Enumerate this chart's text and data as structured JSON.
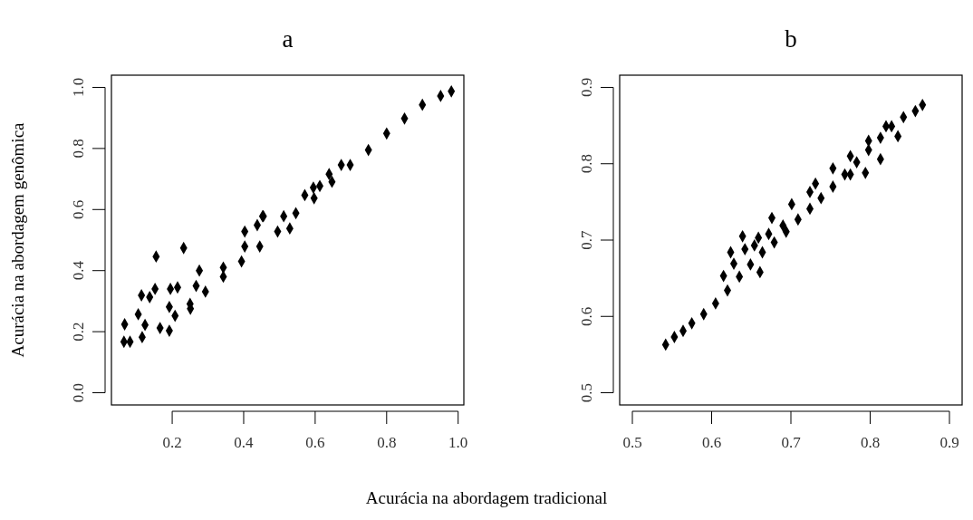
{
  "chart_data": [
    {
      "type": "scatter",
      "title": "a",
      "ylabel": "Acurácia na abordagem genômica",
      "marker": "diamond",
      "grid": false,
      "xlim": [
        0.03,
        1.016
      ],
      "ylim": [
        -0.04,
        1.04
      ],
      "xticks": [
        0.2,
        0.4,
        0.6,
        0.8,
        {
          "value": 1,
          "label": "1.0"
        }
      ],
      "yticks": [
        {
          "value": 0,
          "label": "0.0"
        },
        0.2,
        0.4,
        0.6,
        0.8,
        {
          "value": 1,
          "label": "1.0"
        }
      ],
      "series": [
        {
          "color": "#000000",
          "x": [
            0.065,
            0.082,
            0.116,
            0.166,
            0.208,
            0.25,
            0.293,
            0.343,
            0.394,
            0.445,
            0.495,
            0.546,
            0.597,
            0.647,
            0.698,
            0.749,
            0.8,
            0.85,
            0.9,
            0.951,
            0.981,
            0.124,
            0.192,
            0.267,
            0.276,
            0.343,
            0.403,
            0.403,
            0.453,
            0.512,
            0.571,
            0.613,
            0.639,
            0.673,
            0.067,
            0.105,
            0.114,
            0.137,
            0.152,
            0.155,
            0.192,
            0.195,
            0.215,
            0.232,
            0.251,
            0.455,
            0.438,
            0.529,
            0.595
          ],
          "values": [
            0.167,
            0.167,
            0.182,
            0.212,
            0.252,
            0.291,
            0.331,
            0.38,
            0.43,
            0.479,
            0.528,
            0.588,
            0.637,
            0.691,
            0.746,
            0.795,
            0.849,
            0.898,
            0.943,
            0.972,
            0.987,
            0.222,
            0.281,
            0.35,
            0.4,
            0.41,
            0.479,
            0.528,
            0.578,
            0.578,
            0.647,
            0.677,
            0.716,
            0.746,
            0.224,
            0.257,
            0.319,
            0.313,
            0.34,
            0.446,
            0.203,
            0.34,
            0.345,
            0.474,
            0.275,
            0.578,
            0.549,
            0.538,
            0.672
          ]
        }
      ]
    },
    {
      "type": "scatter",
      "title": "b",
      "xlabel": "Acurácia na abordagem tradicional",
      "marker": "diamond",
      "grid": false,
      "xlim": [
        0.484,
        0.916
      ],
      "ylim": [
        0.484,
        0.916
      ],
      "xticks": [
        0.5,
        0.6,
        0.7,
        0.8,
        0.9
      ],
      "yticks": [
        0.5,
        0.6,
        0.7,
        0.8,
        0.9
      ],
      "series": [
        {
          "color": "#000000",
          "x": [
            0.542,
            0.553,
            0.564,
            0.575,
            0.59,
            0.605,
            0.62,
            0.635,
            0.649,
            0.664,
            0.679,
            0.694,
            0.709,
            0.724,
            0.738,
            0.753,
            0.768,
            0.783,
            0.798,
            0.813,
            0.827,
            0.842,
            0.857,
            0.866,
            0.701,
            0.724,
            0.753,
            0.775,
            0.798,
            0.82,
            0.69,
            0.731,
            0.775,
            0.794,
            0.813,
            0.835,
            0.615,
            0.628,
            0.624,
            0.639,
            0.642,
            0.654,
            0.659,
            0.661,
            0.676,
            0.672
          ],
          "values": [
            0.563,
            0.573,
            0.581,
            0.591,
            0.603,
            0.617,
            0.634,
            0.652,
            0.668,
            0.684,
            0.697,
            0.711,
            0.727,
            0.741,
            0.755,
            0.77,
            0.786,
            0.802,
            0.818,
            0.834,
            0.849,
            0.861,
            0.869,
            0.877,
            0.747,
            0.763,
            0.794,
            0.81,
            0.83,
            0.849,
            0.719,
            0.774,
            0.786,
            0.788,
            0.806,
            0.836,
            0.653,
            0.669,
            0.684,
            0.705,
            0.688,
            0.693,
            0.703,
            0.658,
            0.729,
            0.708
          ]
        }
      ]
    }
  ]
}
